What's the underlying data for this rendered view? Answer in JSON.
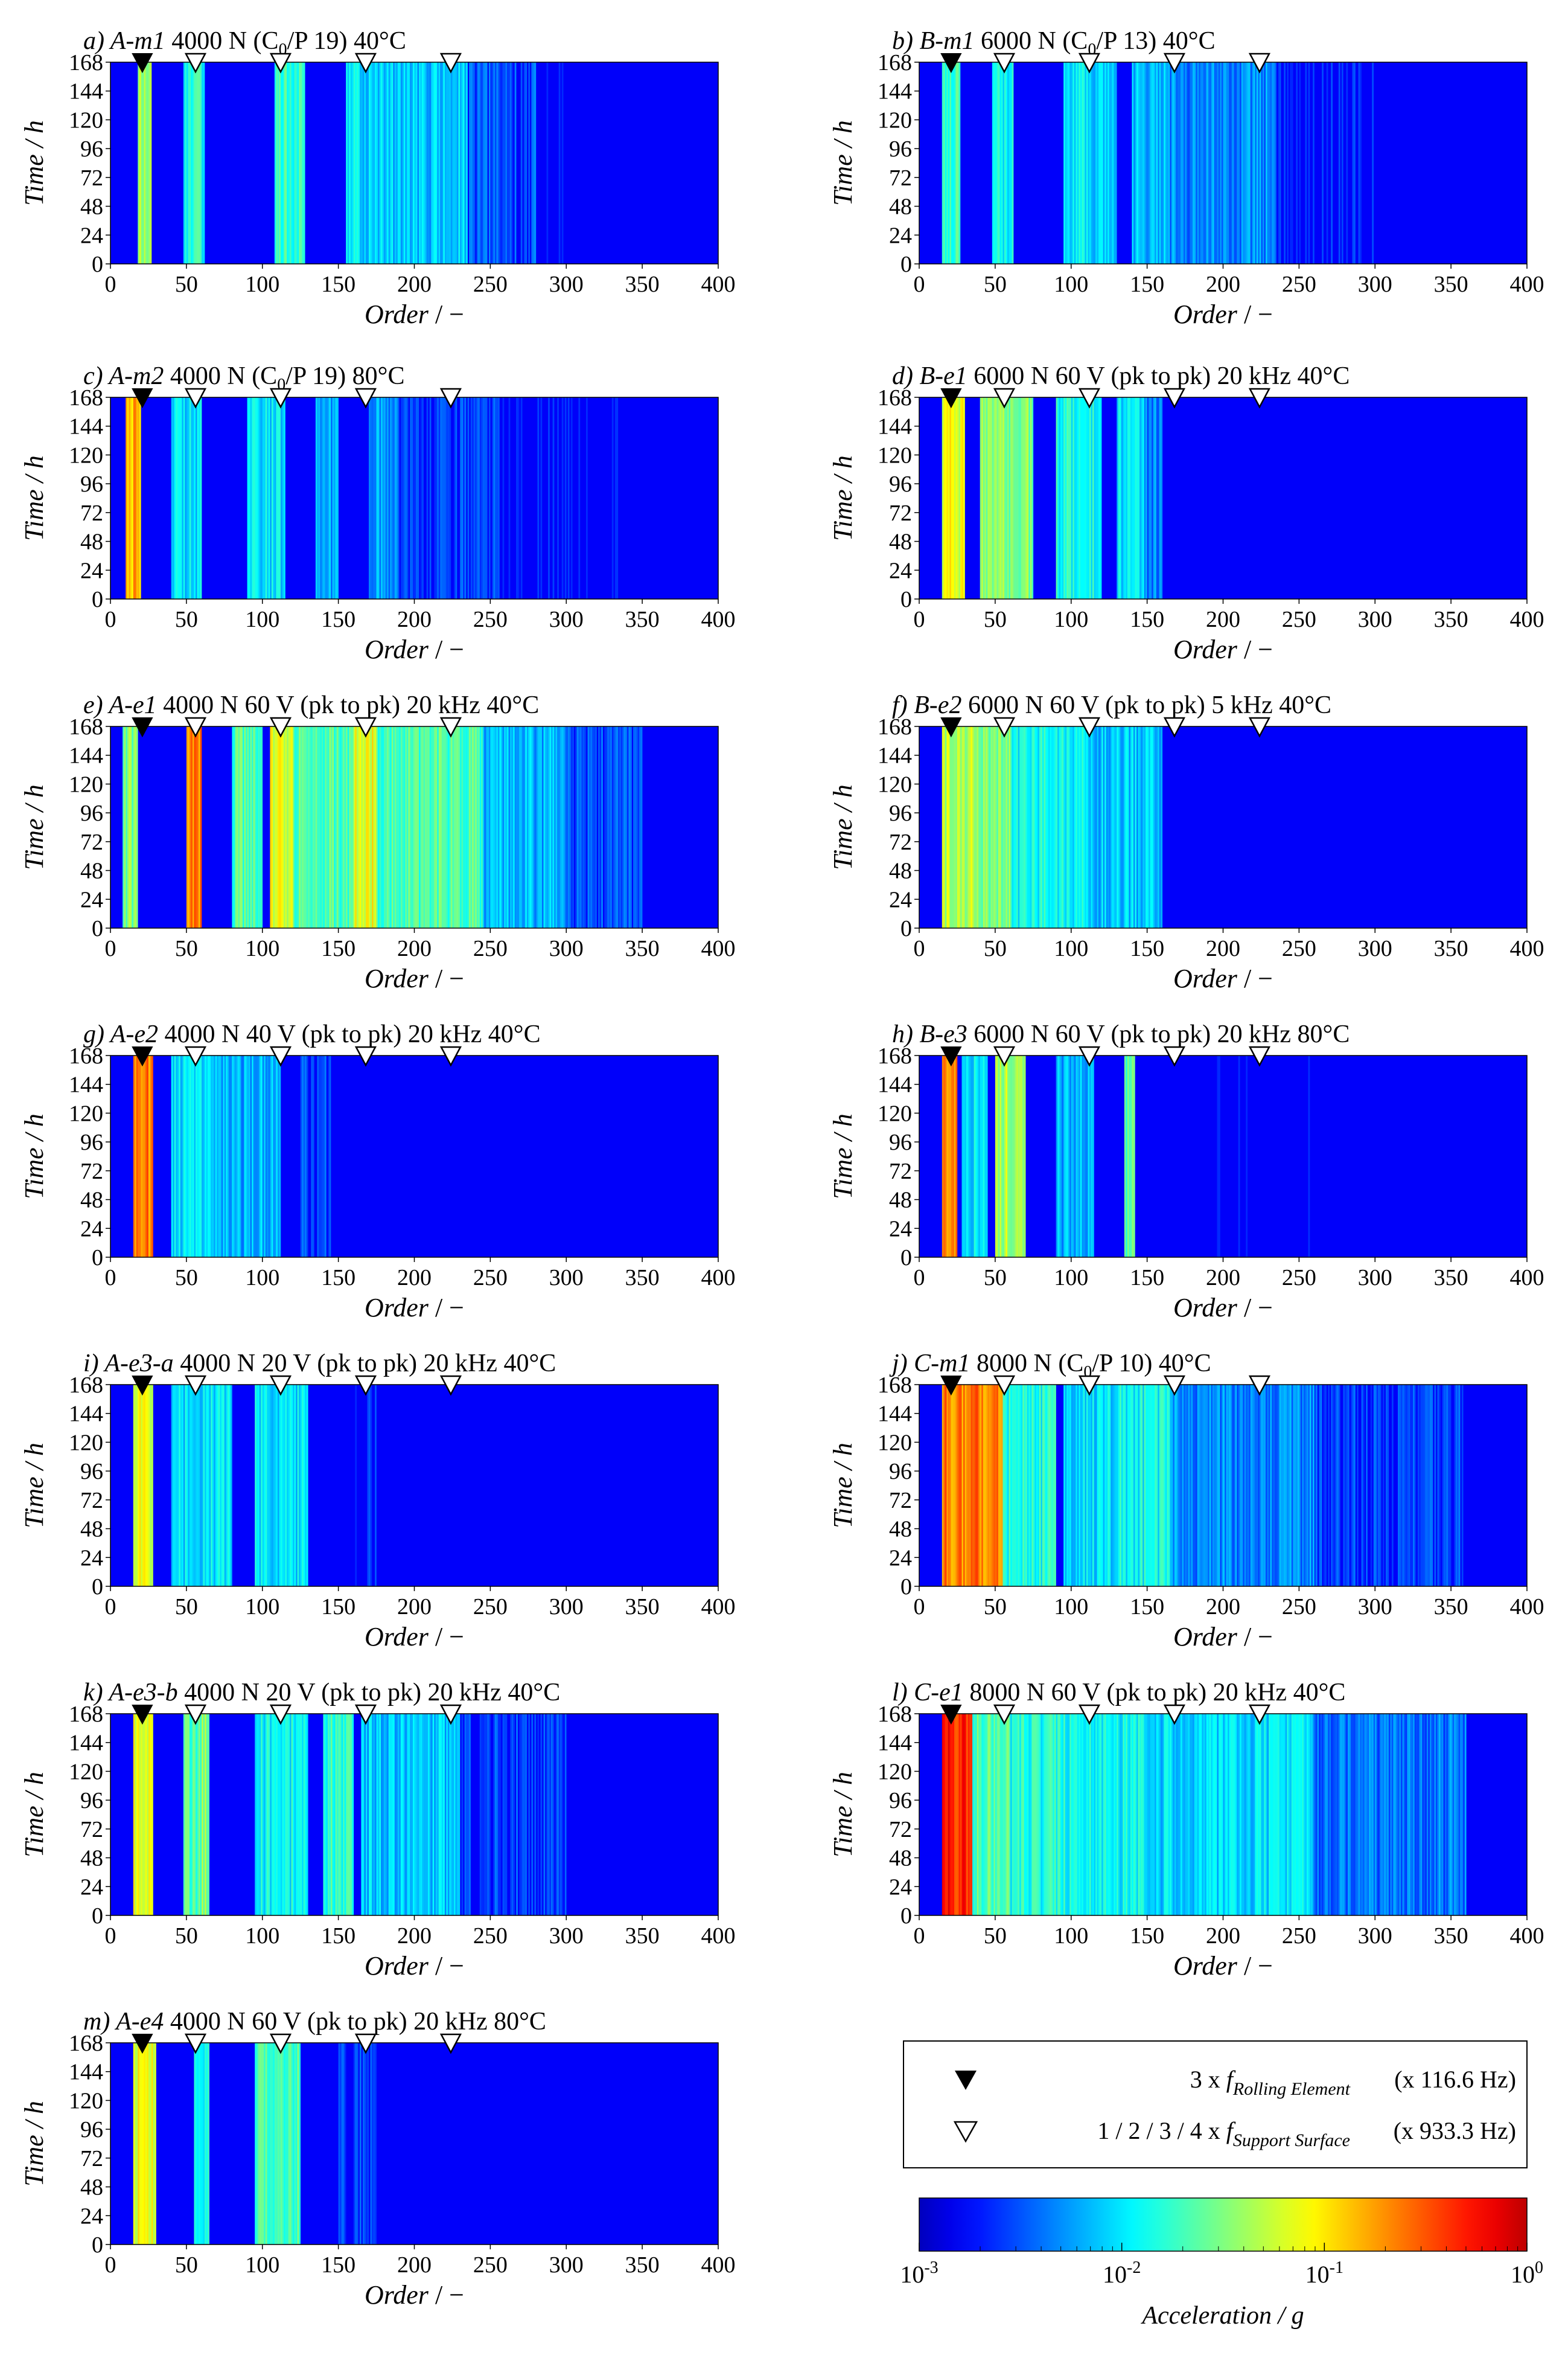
{
  "chart_data": {
    "type": "heatmap",
    "x_ticks": [
      0,
      50,
      100,
      150,
      200,
      250,
      300,
      350,
      400
    ],
    "y_ticks": [
      0,
      24,
      48,
      72,
      96,
      120,
      144,
      168
    ],
    "xlim": [
      0,
      400
    ],
    "ylim": [
      0,
      168
    ],
    "xlabel": "Order",
    "xlabel_unit": " / −",
    "ylabel": "Time / h",
    "marker_orders": {
      "rolling_element": 21,
      "support_surface": [
        56,
        112,
        168,
        224
      ]
    },
    "panels": [
      {
        "id": "a",
        "letter": "a)",
        "name": "A-m1",
        "condition": "4000 N (C",
        "sub": "0",
        "condition_tail": "/P 19) 40°C",
        "bands": [
          [
            18,
            27,
            0.55
          ],
          [
            48,
            62,
            0.4
          ],
          [
            108,
            128,
            0.42
          ],
          [
            155,
            175,
            0.35
          ],
          [
            170,
            235,
            0.32
          ],
          [
            235,
            280,
            0.2
          ],
          [
            282,
            300,
            0.12
          ]
        ]
      },
      {
        "id": "b",
        "letter": "b)",
        "name": "B-m1",
        "condition": "6000 N (C",
        "sub": "0",
        "condition_tail": "/P 13) 40°C",
        "bands": [
          [
            15,
            27,
            0.42
          ],
          [
            48,
            62,
            0.38
          ],
          [
            95,
            130,
            0.35
          ],
          [
            140,
            165,
            0.32
          ],
          [
            165,
            235,
            0.26
          ],
          [
            235,
            300,
            0.14
          ]
        ]
      },
      {
        "id": "c",
        "letter": "c)",
        "name": "A-m2",
        "condition": "4000 N (C",
        "sub": "0",
        "condition_tail": "/P 19) 80°C",
        "bands": [
          [
            10,
            20,
            0.7
          ],
          [
            40,
            60,
            0.35
          ],
          [
            90,
            115,
            0.35
          ],
          [
            135,
            150,
            0.3
          ],
          [
            170,
            190,
            0.28
          ],
          [
            190,
            260,
            0.18
          ],
          [
            260,
            350,
            0.12
          ]
        ]
      },
      {
        "id": "d",
        "letter": "d)",
        "name": "B-e1",
        "condition": "6000 N 60 V (pk to pk) 20 kHz 40°C",
        "sub": "",
        "condition_tail": "",
        "bands": [
          [
            15,
            30,
            0.6
          ],
          [
            40,
            75,
            0.5
          ],
          [
            90,
            120,
            0.4
          ],
          [
            130,
            148,
            0.35
          ],
          [
            148,
            160,
            0.25
          ]
        ]
      },
      {
        "id": "e",
        "letter": "e)",
        "name": "A-e1",
        "condition": "4000 N 60 V (pk to pk) 20 kHz 40°C",
        "sub": "",
        "condition_tail": "",
        "bands": [
          [
            8,
            18,
            0.5
          ],
          [
            50,
            60,
            0.75
          ],
          [
            80,
            100,
            0.45
          ],
          [
            105,
            120,
            0.6
          ],
          [
            120,
            170,
            0.45
          ],
          [
            160,
            175,
            0.6
          ],
          [
            175,
            245,
            0.45
          ],
          [
            245,
            300,
            0.3
          ],
          [
            300,
            350,
            0.2
          ]
        ]
      },
      {
        "id": "f",
        "letter": "f)",
        "name": "B-e2",
        "condition": "6000 N 60 V (pk to pk) 5 kHz 40°C",
        "sub": "",
        "condition_tail": "",
        "bands": [
          [
            15,
            35,
            0.55
          ],
          [
            35,
            60,
            0.5
          ],
          [
            60,
            110,
            0.38
          ],
          [
            110,
            160,
            0.32
          ]
        ]
      },
      {
        "id": "g",
        "letter": "g)",
        "name": "A-e2",
        "condition": "4000 N 40 V (pk to pk) 20 kHz 40°C",
        "sub": "",
        "condition_tail": "",
        "bands": [
          [
            15,
            28,
            0.75
          ],
          [
            40,
            70,
            0.35
          ],
          [
            70,
            112,
            0.3
          ],
          [
            125,
            145,
            0.18
          ]
        ]
      },
      {
        "id": "h",
        "letter": "h)",
        "name": "B-e3",
        "condition": "6000 N 60 V (pk to pk) 20 kHz 80°C",
        "sub": "",
        "condition_tail": "",
        "bands": [
          [
            15,
            25,
            0.75
          ],
          [
            28,
            45,
            0.35
          ],
          [
            50,
            70,
            0.55
          ],
          [
            90,
            115,
            0.3
          ],
          [
            135,
            142,
            0.45
          ],
          [
            150,
            260,
            0.1
          ]
        ]
      },
      {
        "id": "i",
        "letter": "i)",
        "name": "A-e3-a",
        "condition": "4000 N 20 V (pk to pk) 20 kHz 40°C",
        "sub": "",
        "condition_tail": "",
        "bands": [
          [
            15,
            28,
            0.6
          ],
          [
            40,
            60,
            0.35
          ],
          [
            60,
            80,
            0.35
          ],
          [
            95,
            130,
            0.35
          ],
          [
            160,
            175,
            0.15
          ]
        ]
      },
      {
        "id": "j",
        "letter": "j)",
        "name": "C-m1",
        "condition": "8000 N (C",
        "sub": "0",
        "condition_tail": "/P 10) 40°C",
        "bands": [
          [
            15,
            55,
            0.75
          ],
          [
            55,
            90,
            0.4
          ],
          [
            95,
            130,
            0.35
          ],
          [
            130,
            165,
            0.38
          ],
          [
            165,
            260,
            0.26
          ],
          [
            260,
            360,
            0.18
          ]
        ]
      },
      {
        "id": "k",
        "letter": "k)",
        "name": "A-e3-b",
        "condition": "4000 N 20 V (pk to pk) 20 kHz 40°C",
        "sub": "",
        "condition_tail": "",
        "bands": [
          [
            15,
            28,
            0.6
          ],
          [
            48,
            60,
            0.45
          ],
          [
            60,
            65,
            0.5
          ],
          [
            95,
            130,
            0.38
          ],
          [
            140,
            160,
            0.42
          ],
          [
            165,
            230,
            0.32
          ],
          [
            230,
            300,
            0.18
          ]
        ]
      },
      {
        "id": "l",
        "letter": "l)",
        "name": "C-e1",
        "condition": "8000 N 60 V (pk to pk) 20 kHz 40°C",
        "sub": "",
        "condition_tail": "",
        "bands": [
          [
            15,
            35,
            0.85
          ],
          [
            35,
            60,
            0.45
          ],
          [
            60,
            110,
            0.4
          ],
          [
            110,
            150,
            0.38
          ],
          [
            150,
            260,
            0.34
          ],
          [
            260,
            360,
            0.24
          ]
        ]
      },
      {
        "id": "m",
        "letter": "m)",
        "name": "A-e4",
        "condition": "4000 N 60 V (pk to pk) 20 kHz 80°C",
        "sub": "",
        "condition_tail": "",
        "bands": [
          [
            15,
            30,
            0.6
          ],
          [
            55,
            65,
            0.4
          ],
          [
            95,
            125,
            0.45
          ],
          [
            150,
            175,
            0.18
          ]
        ]
      }
    ],
    "legend": {
      "filled": {
        "prefix": "3 x ",
        "f": "f",
        "sub": "Rolling Element",
        "note": "(x 116.6 Hz)"
      },
      "open": {
        "prefix": "1 / 2 / 3 / 4 x ",
        "f": "f",
        "sub": "Support Surface",
        "note": "(x 933.3 Hz)"
      }
    },
    "colorbar": {
      "scale": "log",
      "range": [
        0.001,
        1
      ],
      "ticks": [
        {
          "base": "10",
          "exp": "-3"
        },
        {
          "base": "10",
          "exp": "-2"
        },
        {
          "base": "10",
          "exp": "-1"
        },
        {
          "base": "10",
          "exp": "0"
        }
      ],
      "label": "Acceleration / g",
      "colormap": "jet"
    }
  }
}
